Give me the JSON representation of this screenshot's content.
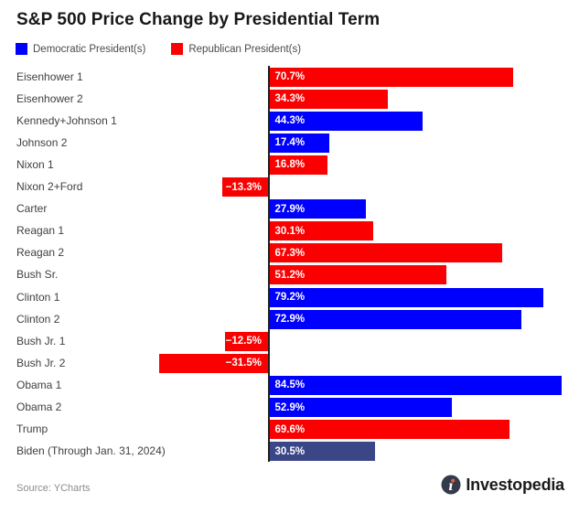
{
  "title": "S&P 500 Price Change by Presidential Term",
  "legend": [
    {
      "id": "democratic",
      "label": "Democratic President(s)",
      "color": "#0000FE"
    },
    {
      "id": "republican",
      "label": "Republican President(s)",
      "color": "#FB0000"
    }
  ],
  "colors": {
    "dem": "#0000FE",
    "rep": "#FB0000",
    "dem_current": "#3B4687",
    "axis": "#1F1F1F",
    "value_text": "#FFFFFF"
  },
  "chart_data": {
    "type": "bar",
    "orientation": "horizontal",
    "title": "S&P 500 Price Change by Presidential Term",
    "grid": false,
    "legend_position": "top",
    "xlim": [
      -35,
      90
    ],
    "categories": [
      "Eisenhower 1",
      "Eisenhower 2",
      "Kennedy+Johnson 1",
      "Johnson 2",
      "Nixon 1",
      "Nixon 2+Ford",
      "Carter",
      "Reagan 1",
      "Reagan 2",
      "Bush Sr.",
      "Clinton 1",
      "Clinton 2",
      "Bush Jr. 1",
      "Bush Jr. 2",
      "Obama 1",
      "Obama 2",
      "Trump",
      "Biden (Through Jan. 31, 2024)"
    ],
    "values": [
      70.7,
      34.3,
      44.3,
      17.4,
      16.8,
      -13.3,
      27.9,
      30.1,
      67.3,
      51.2,
      79.2,
      72.9,
      -12.5,
      -31.5,
      84.5,
      52.9,
      69.6,
      30.5
    ],
    "value_labels": [
      "70.7%",
      "34.3%",
      "44.3%",
      "17.4%",
      "16.8%",
      "−13.3%",
      "27.9%",
      "30.1%",
      "67.3%",
      "51.2%",
      "79.2%",
      "72.9%",
      "−12.5%",
      "−31.5%",
      "84.5%",
      "52.9%",
      "69.6%",
      "30.5%"
    ],
    "parties": [
      "rep",
      "rep",
      "dem",
      "dem",
      "rep",
      "rep",
      "dem",
      "rep",
      "rep",
      "rep",
      "dem",
      "dem",
      "rep",
      "rep",
      "dem",
      "dem",
      "rep",
      "dem_current"
    ]
  },
  "footer": {
    "source": "Source: YCharts",
    "brand": "Investopedia"
  }
}
